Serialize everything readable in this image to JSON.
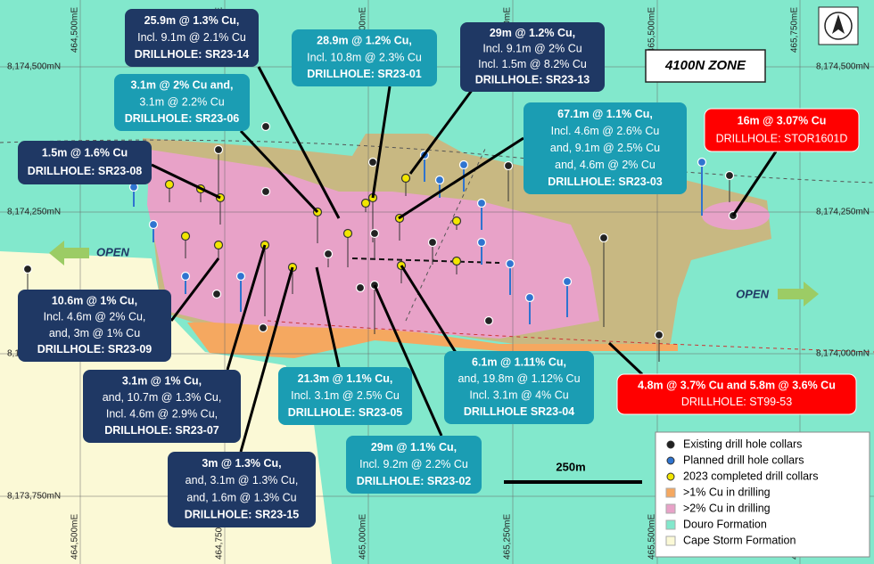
{
  "map": {
    "zone_label": "4100N ZONE",
    "open_labels": [
      "OPEN",
      "OPEN"
    ],
    "scale_label": "250m",
    "eastings": [
      "464,500mE",
      "464,750mE",
      "465,000mE",
      "465,250mE",
      "465,500mE",
      "465,750mE"
    ],
    "northings": [
      "8,174,500mN",
      "8,174,250mN",
      "8,174,000mN",
      "8,173,750mN"
    ],
    "callouts": [
      {
        "lines": [
          "25.9m @ 1.3% Cu,",
          "Incl. 9.1m @ 2.1% Cu",
          "DRILLHOLE: SR23-14"
        ]
      },
      {
        "lines": [
          "28.9m @ 1.2% Cu,",
          "Incl. 10.8m @ 2.3% Cu",
          "DRILLHOLE: SR23-01"
        ]
      },
      {
        "lines": [
          "29m @ 1.2% Cu,",
          "Incl. 9.1m @ 2% Cu",
          "Incl. 1.5m @ 8.2% Cu",
          "DRILLHOLE: SR23-13"
        ]
      },
      {
        "lines": [
          "3.1m @ 2% Cu and,",
          "3.1m @ 2.2% Cu",
          "DRILLHOLE: SR23-06"
        ]
      },
      {
        "lines": [
          "1.5m @ 1.6% Cu",
          "DRILLHOLE: SR23-08"
        ]
      },
      {
        "lines": [
          "67.1m @ 1.1% Cu,",
          "Incl. 4.6m @ 2.6% Cu",
          "and, 9.1m @ 2.5% Cu",
          "and, 4.6m @ 2% Cu",
          "DRILLHOLE: SR23-03"
        ]
      },
      {
        "lines": [
          "16m @ 3.07% Cu",
          "DRILLHOLE: STOR1601D"
        ]
      },
      {
        "lines": [
          "10.6m @ 1% Cu,",
          "Incl. 4.6m @ 2% Cu,",
          "and, 3m @ 1% Cu",
          "DRILLHOLE: SR23-09"
        ]
      },
      {
        "lines": [
          "3.1m @ 1% Cu,",
          "and, 10.7m @ 1.3% Cu,",
          "Incl. 4.6m @ 2.9% Cu,",
          "DRILLHOLE: SR23-07"
        ]
      },
      {
        "lines": [
          "21.3m @ 1.1% Cu,",
          "Incl. 3.1m @ 2.5% Cu",
          "DRILLHOLE: SR23-05"
        ]
      },
      {
        "lines": [
          "6.1m @ 1.11% Cu,",
          "and, 19.8m @ 1.12% Cu",
          "Incl. 3.1m @ 4% Cu",
          "DRILLHOLE SR23-04"
        ]
      },
      {
        "lines": [
          "4.8m @ 3.7% Cu and 5.8m @ 3.6% Cu",
          "DRILLHOLE: ST99-53"
        ]
      },
      {
        "lines": [
          "29m @ 1.1% Cu,",
          "Incl. 9.2m @ 2.2% Cu",
          "DRILLHOLE: SR23-02"
        ]
      },
      {
        "lines": [
          "3m @ 1.3% Cu,",
          "and, 3.1m @ 1.3% Cu,",
          "and, 1.6m @ 1.3% Cu",
          "DRILLHOLE: SR23-15"
        ]
      }
    ],
    "legend": [
      "Existing drill hole collars",
      "Planned drill hole collars",
      "2023 completed drill collars",
      ">1% Cu in drilling",
      ">2% Cu in drilling",
      "Douro Formation",
      "Cape Storm Formation"
    ]
  }
}
